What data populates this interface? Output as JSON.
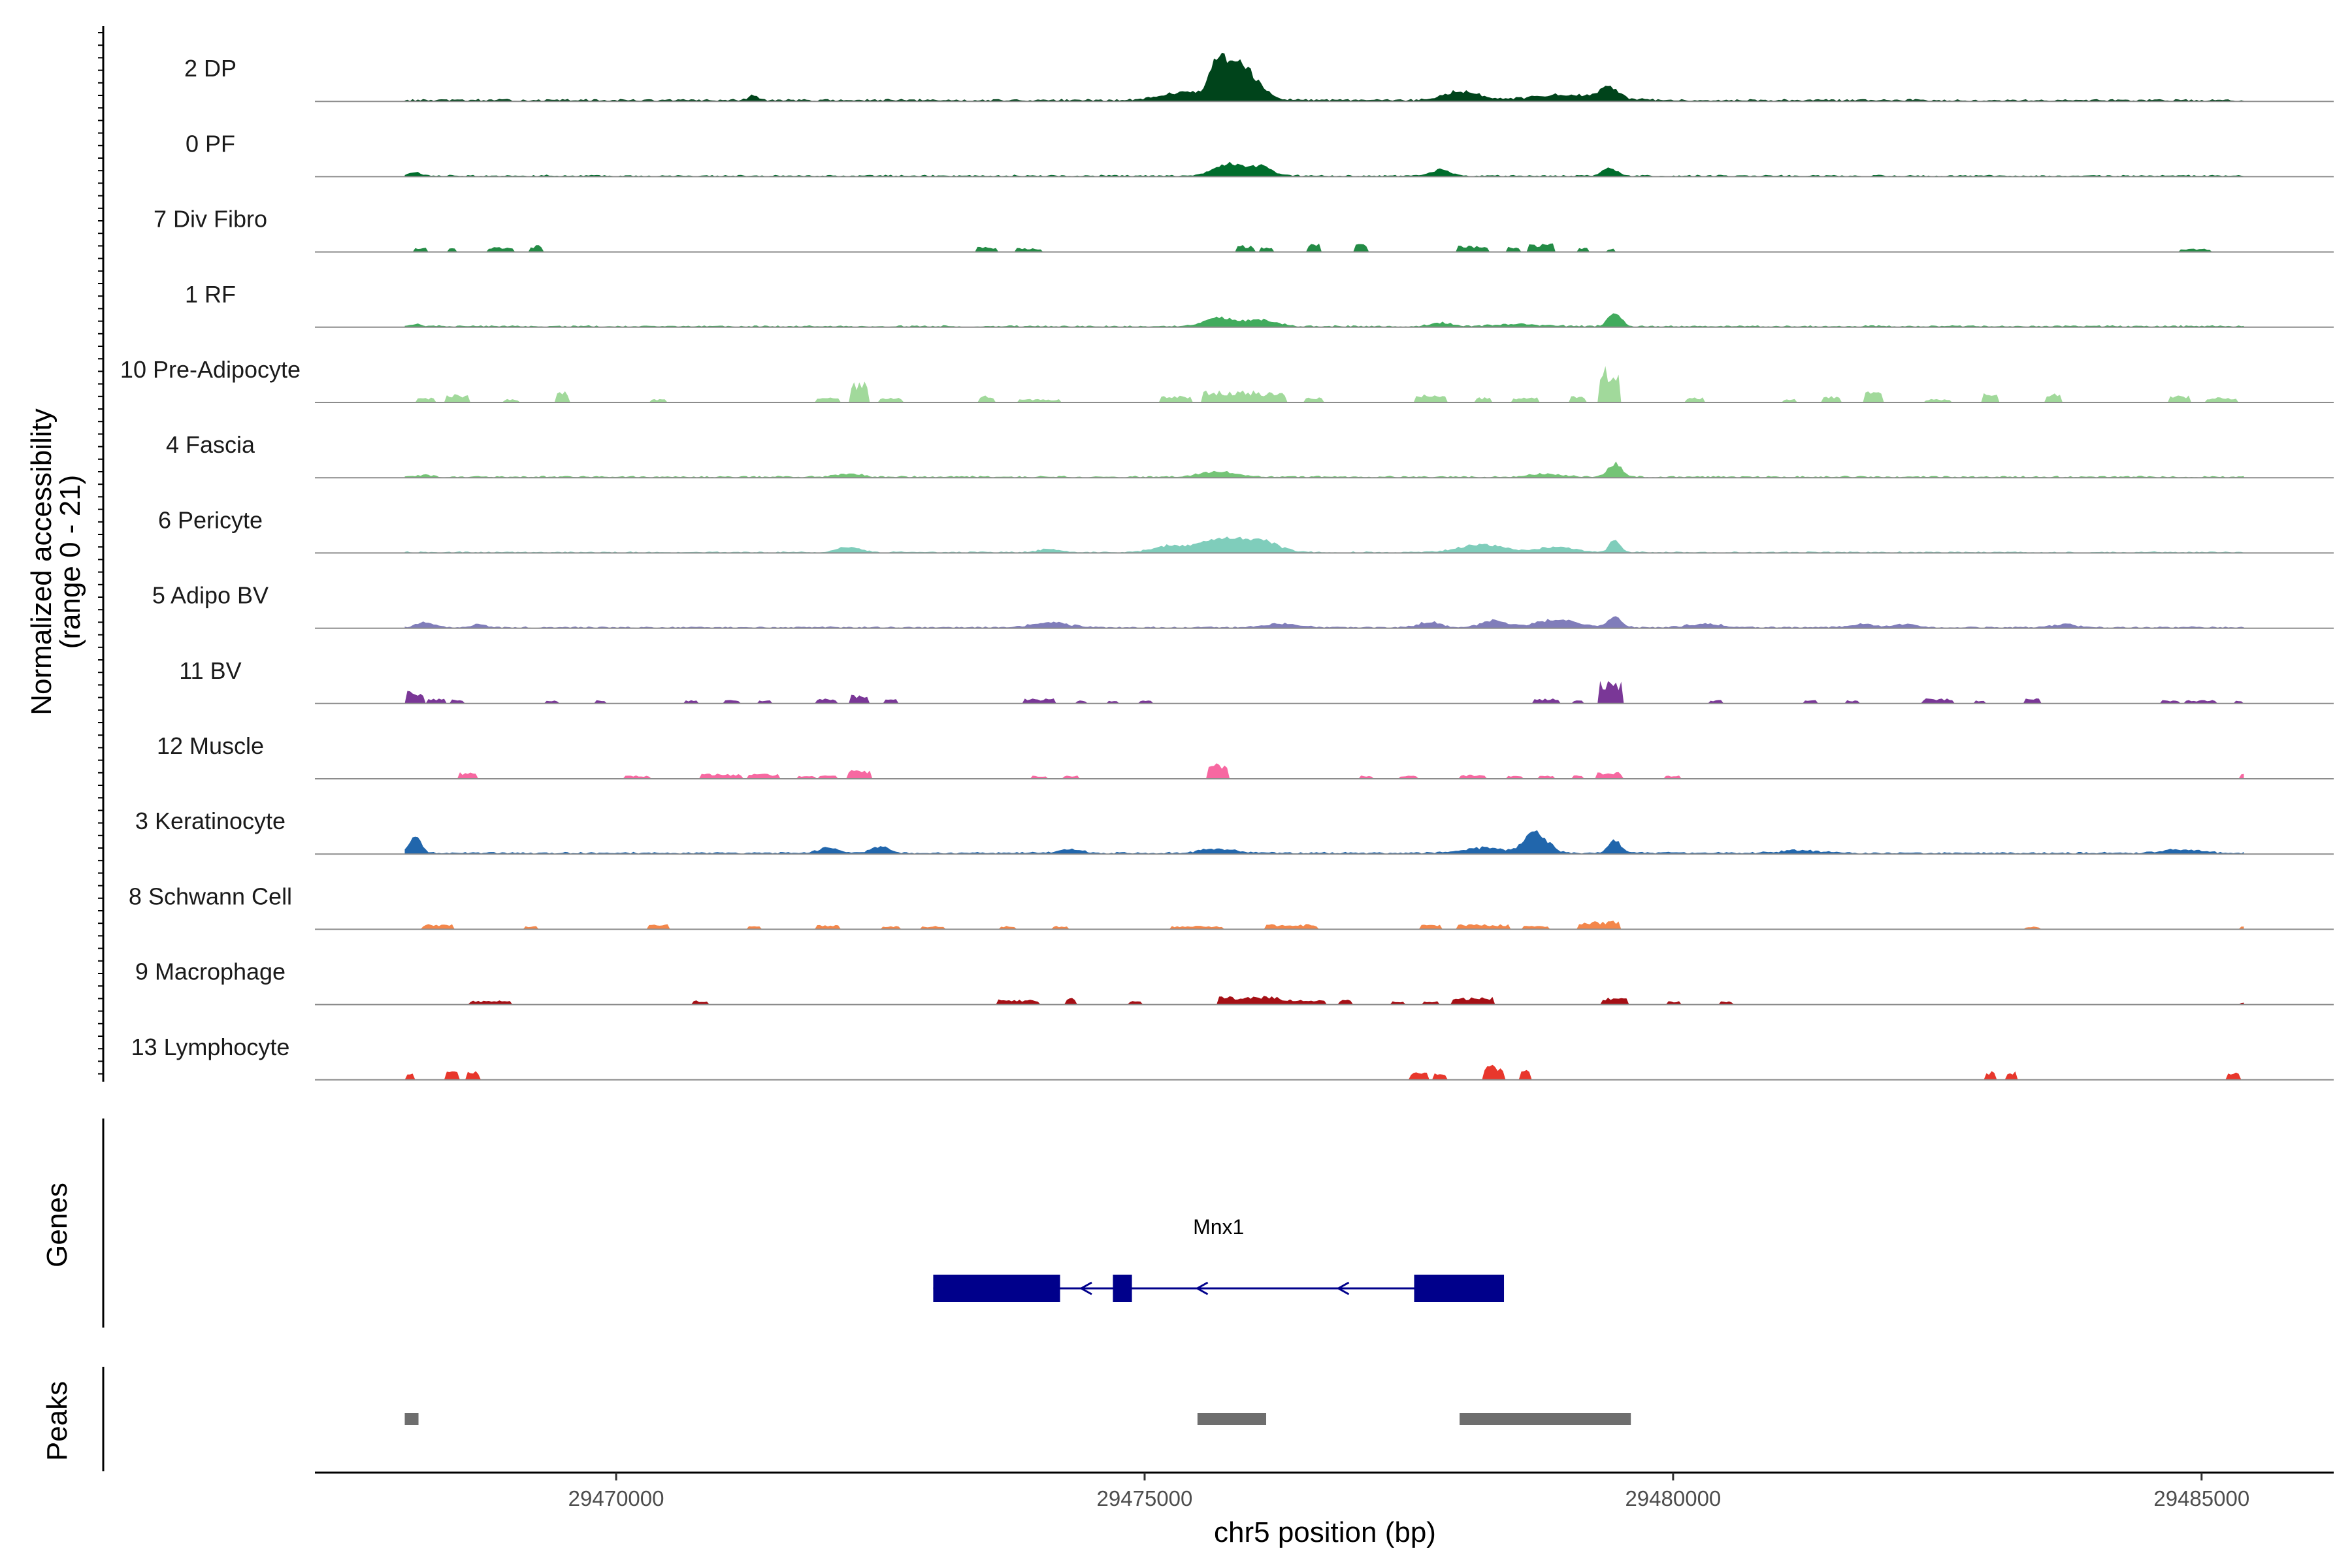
{
  "chart_data": {
    "type": "area",
    "chromosome": "chr5",
    "xlabel": "chr5 position (bp)",
    "ylabel_line1": "Normalized accessibility",
    "ylabel_line2": "(range 0 - 21)",
    "y_range": [
      0,
      21
    ],
    "xlim": [
      29467150,
      29486250
    ],
    "x_ticks": [
      29470000,
      29475000,
      29480000,
      29485000
    ],
    "x_tick_labels": [
      "29470000",
      "29475000",
      "29480000",
      "29485000"
    ],
    "region": [
      29468000,
      29485400
    ],
    "tracks": [
      {
        "name": "2 DP",
        "color": "#00441b",
        "mode": "cont",
        "base": 0.4,
        "peaks": [
          [
            29475700,
            140,
            10.5
          ],
          [
            29475900,
            180,
            7.0
          ],
          [
            29476000,
            260,
            4.5
          ],
          [
            29475400,
            400,
            2.5
          ],
          [
            29478000,
            300,
            2.5
          ],
          [
            29479400,
            150,
            3.0
          ],
          [
            29479000,
            600,
            1.5
          ],
          [
            29471300,
            80,
            1.5
          ]
        ]
      },
      {
        "name": "0 PF",
        "color": "#006d2c",
        "mode": "cont",
        "base": 0.3,
        "peaks": [
          [
            29475800,
            250,
            3.5
          ],
          [
            29476100,
            200,
            2.5
          ],
          [
            29477800,
            150,
            1.8
          ],
          [
            29479400,
            120,
            2.2
          ],
          [
            29468100,
            100,
            1.0
          ]
        ]
      },
      {
        "name": "7 Div Fibro",
        "color": "#238b45",
        "mode": "sparse",
        "peaks": [
          [
            29468150,
            60,
            1.5
          ],
          [
            29468450,
            40,
            1.2
          ],
          [
            29468900,
            120,
            1.5
          ],
          [
            29469250,
            60,
            2.0
          ],
          [
            29473500,
            100,
            1.5
          ],
          [
            29473900,
            120,
            1.2
          ],
          [
            29475950,
            80,
            2.0
          ],
          [
            29476150,
            60,
            1.5
          ],
          [
            29476600,
            60,
            2.5
          ],
          [
            29477050,
            60,
            2.5
          ],
          [
            29478100,
            150,
            2.0
          ],
          [
            29478500,
            60,
            1.5
          ],
          [
            29478750,
            120,
            2.5
          ],
          [
            29479150,
            60,
            1.5
          ],
          [
            29479400,
            40,
            1.0
          ],
          [
            29484950,
            150,
            1.0
          ]
        ]
      },
      {
        "name": "1 RF",
        "color": "#41ab5d",
        "mode": "cont",
        "base": 0.3,
        "peaks": [
          [
            29475700,
            250,
            2.5
          ],
          [
            29476100,
            250,
            2.0
          ],
          [
            29477800,
            200,
            1.0
          ],
          [
            29479450,
            110,
            4.0
          ],
          [
            29478500,
            400,
            0.6
          ],
          [
            29468100,
            100,
            0.6
          ]
        ]
      },
      {
        "name": "10 Pre-Adipocyte",
        "color": "#a1d99b",
        "mode": "sparse",
        "peaks": [
          [
            29468200,
            80,
            1.5
          ],
          [
            29468500,
            120,
            2.5
          ],
          [
            29469000,
            80,
            1.0
          ],
          [
            29469500,
            60,
            3.5
          ],
          [
            29470400,
            80,
            1.0
          ],
          [
            29472000,
            120,
            1.5
          ],
          [
            29472300,
            80,
            6.0
          ],
          [
            29472600,
            120,
            1.5
          ],
          [
            29473500,
            80,
            2.0
          ],
          [
            29474000,
            200,
            1.0
          ],
          [
            29475300,
            150,
            2.0
          ],
          [
            29475800,
            250,
            3.5
          ],
          [
            29476200,
            150,
            3.0
          ],
          [
            29476600,
            80,
            1.5
          ],
          [
            29477700,
            150,
            2.5
          ],
          [
            29478200,
            80,
            1.5
          ],
          [
            29478600,
            120,
            1.5
          ],
          [
            29479400,
            100,
            10.5
          ],
          [
            29479100,
            80,
            2.0
          ],
          [
            29480200,
            80,
            1.5
          ],
          [
            29481100,
            60,
            1.0
          ],
          [
            29481500,
            80,
            2.0
          ],
          [
            29481900,
            80,
            3.5
          ],
          [
            29482500,
            120,
            1.0
          ],
          [
            29483000,
            80,
            3.0
          ],
          [
            29483600,
            80,
            3.0
          ],
          [
            29484800,
            100,
            2.0
          ],
          [
            29485200,
            150,
            1.5
          ]
        ]
      },
      {
        "name": "4 Fascia",
        "color": "#74c476",
        "mode": "cont",
        "base": 0.3,
        "peaks": [
          [
            29472200,
            200,
            1.0
          ],
          [
            29475700,
            300,
            1.5
          ],
          [
            29479450,
            110,
            4.0
          ],
          [
            29478800,
            300,
            0.8
          ],
          [
            29468200,
            100,
            0.6
          ]
        ]
      },
      {
        "name": "6 Pericyte",
        "color": "#7fcdbb",
        "mode": "cont",
        "base": 0.25,
        "peaks": [
          [
            29472200,
            200,
            1.5
          ],
          [
            29475700,
            400,
            4.0
          ],
          [
            29476100,
            300,
            3.0
          ],
          [
            29475200,
            250,
            1.5
          ],
          [
            29478200,
            400,
            2.2
          ],
          [
            29478900,
            300,
            1.5
          ],
          [
            29479450,
            90,
            3.5
          ],
          [
            29474100,
            200,
            0.8
          ]
        ]
      },
      {
        "name": "5 Adipo BV",
        "color": "#807dba",
        "mode": "cont",
        "base": 0.3,
        "peaks": [
          [
            29468200,
            150,
            1.5
          ],
          [
            29468700,
            100,
            1.0
          ],
          [
            29474100,
            300,
            1.5
          ],
          [
            29476300,
            300,
            1.0
          ],
          [
            29477700,
            200,
            1.5
          ],
          [
            29478300,
            200,
            2.0
          ],
          [
            29478900,
            350,
            2.2
          ],
          [
            29479450,
            110,
            2.8
          ],
          [
            29480300,
            300,
            1.0
          ],
          [
            29481800,
            200,
            1.0
          ],
          [
            29482200,
            200,
            1.0
          ],
          [
            29483700,
            200,
            0.8
          ]
        ]
      },
      {
        "name": "11 BV",
        "color": "#7a3797",
        "mode": "sparse",
        "peaks": [
          [
            29468100,
            80,
            4.0
          ],
          [
            29468300,
            80,
            1.5
          ],
          [
            29468500,
            60,
            1.2
          ],
          [
            29469400,
            60,
            1.0
          ],
          [
            29469850,
            60,
            1.0
          ],
          [
            29470700,
            60,
            1.0
          ],
          [
            29471100,
            80,
            1.2
          ],
          [
            29471400,
            60,
            1.0
          ],
          [
            29472000,
            100,
            1.5
          ],
          [
            29472300,
            80,
            2.5
          ],
          [
            29472600,
            60,
            1.5
          ],
          [
            29474000,
            150,
            1.5
          ],
          [
            29474400,
            60,
            1.0
          ],
          [
            29474700,
            60,
            1.0
          ],
          [
            29475000,
            60,
            1.0
          ],
          [
            29478800,
            120,
            1.5
          ],
          [
            29479100,
            60,
            1.0
          ],
          [
            29479400,
            110,
            6.5
          ],
          [
            29480400,
            60,
            1.0
          ],
          [
            29481300,
            60,
            1.0
          ],
          [
            29481700,
            60,
            1.0
          ],
          [
            29482500,
            150,
            1.5
          ],
          [
            29482900,
            60,
            1.0
          ],
          [
            29483400,
            80,
            2.0
          ],
          [
            29484700,
            80,
            1.0
          ],
          [
            29485000,
            150,
            1.0
          ],
          [
            29485350,
            40,
            1.0
          ]
        ]
      },
      {
        "name": "12 Muscle",
        "color": "#f768a1",
        "mode": "sparse",
        "peaks": [
          [
            29468600,
            80,
            2.0
          ],
          [
            29470200,
            120,
            1.0
          ],
          [
            29471000,
            200,
            1.5
          ],
          [
            29471400,
            150,
            1.5
          ],
          [
            29471800,
            80,
            1.0
          ],
          [
            29472000,
            80,
            1.0
          ],
          [
            29472300,
            100,
            2.5
          ],
          [
            29474000,
            80,
            1.0
          ],
          [
            29474300,
            80,
            1.0
          ],
          [
            29475700,
            100,
            4.5
          ],
          [
            29477100,
            60,
            1.0
          ],
          [
            29477500,
            80,
            1.0
          ],
          [
            29478100,
            120,
            1.2
          ],
          [
            29478500,
            80,
            1.0
          ],
          [
            29478800,
            80,
            1.0
          ],
          [
            29479100,
            60,
            1.0
          ],
          [
            29479400,
            120,
            2.0
          ],
          [
            29480000,
            80,
            1.0
          ],
          [
            29485400,
            40,
            2.0
          ]
        ]
      },
      {
        "name": "3 Keratinocyte",
        "color": "#2166ac",
        "mode": "cont",
        "base": 0.35,
        "peaks": [
          [
            29468100,
            100,
            4.5
          ],
          [
            29472000,
            150,
            1.5
          ],
          [
            29472500,
            150,
            2.0
          ],
          [
            29475700,
            300,
            1.2
          ],
          [
            29478700,
            200,
            6.0
          ],
          [
            29478200,
            300,
            1.5
          ],
          [
            29479450,
            110,
            3.5
          ],
          [
            29474300,
            200,
            1.0
          ],
          [
            29481200,
            300,
            0.8
          ],
          [
            29484800,
            300,
            1.0
          ]
        ]
      },
      {
        "name": "8 Schwann Cell",
        "color": "#f4874b",
        "mode": "sparse",
        "peaks": [
          [
            29468300,
            150,
            1.5
          ],
          [
            29469200,
            60,
            1.0
          ],
          [
            29470400,
            100,
            1.5
          ],
          [
            29471300,
            60,
            1.0
          ],
          [
            29472000,
            120,
            1.5
          ],
          [
            29472600,
            80,
            1.0
          ],
          [
            29473000,
            120,
            1.0
          ],
          [
            29473700,
            80,
            1.0
          ],
          [
            29474200,
            80,
            1.0
          ],
          [
            29475500,
            250,
            1.0
          ],
          [
            29476400,
            250,
            1.5
          ],
          [
            29477700,
            100,
            1.5
          ],
          [
            29478200,
            250,
            1.5
          ],
          [
            29478700,
            120,
            1.0
          ],
          [
            29479300,
            200,
            2.5
          ],
          [
            29483400,
            80,
            0.8
          ],
          [
            29485400,
            40,
            0.8
          ]
        ]
      },
      {
        "name": "9 Macrophage",
        "color": "#a50f15",
        "mode": "sparse",
        "peaks": [
          [
            29468800,
            200,
            1.2
          ],
          [
            29470800,
            80,
            1.2
          ],
          [
            29473800,
            200,
            1.5
          ],
          [
            29474300,
            60,
            2.0
          ],
          [
            29474900,
            60,
            1.2
          ],
          [
            29476000,
            300,
            2.5
          ],
          [
            29476500,
            200,
            1.5
          ],
          [
            29476900,
            60,
            1.5
          ],
          [
            29477400,
            60,
            1.0
          ],
          [
            29477700,
            80,
            1.0
          ],
          [
            29478100,
            200,
            2.2
          ],
          [
            29479450,
            120,
            2.0
          ],
          [
            29480000,
            60,
            1.0
          ],
          [
            29480500,
            60,
            1.0
          ],
          [
            29485400,
            30,
            0.8
          ]
        ]
      },
      {
        "name": "13 Lymphocyte",
        "color": "#e8372c",
        "mode": "sparse",
        "peaks": [
          [
            29468050,
            40,
            2.5
          ],
          [
            29468450,
            60,
            2.5
          ],
          [
            29468650,
            60,
            2.5
          ],
          [
            29477600,
            80,
            2.5
          ],
          [
            29477800,
            60,
            2.0
          ],
          [
            29478300,
            100,
            4.5
          ],
          [
            29478600,
            60,
            3.0
          ],
          [
            29483000,
            50,
            2.5
          ],
          [
            29483200,
            50,
            2.5
          ],
          [
            29485300,
            60,
            2.5
          ]
        ]
      }
    ],
    "genes": [
      {
        "name": "Mnx1",
        "strand": "-",
        "start": 29473000,
        "end": 29478400,
        "exons": [
          [
            29473000,
            29474200
          ],
          [
            29474700,
            29474880
          ],
          [
            29477550,
            29478400
          ]
        ]
      }
    ],
    "peaks_track": [
      [
        29468000,
        29468130
      ],
      [
        29475500,
        29476150
      ],
      [
        29477980,
        29479600
      ]
    ],
    "panel_labels": {
      "genes": "Genes",
      "peaks": "Peaks"
    }
  }
}
